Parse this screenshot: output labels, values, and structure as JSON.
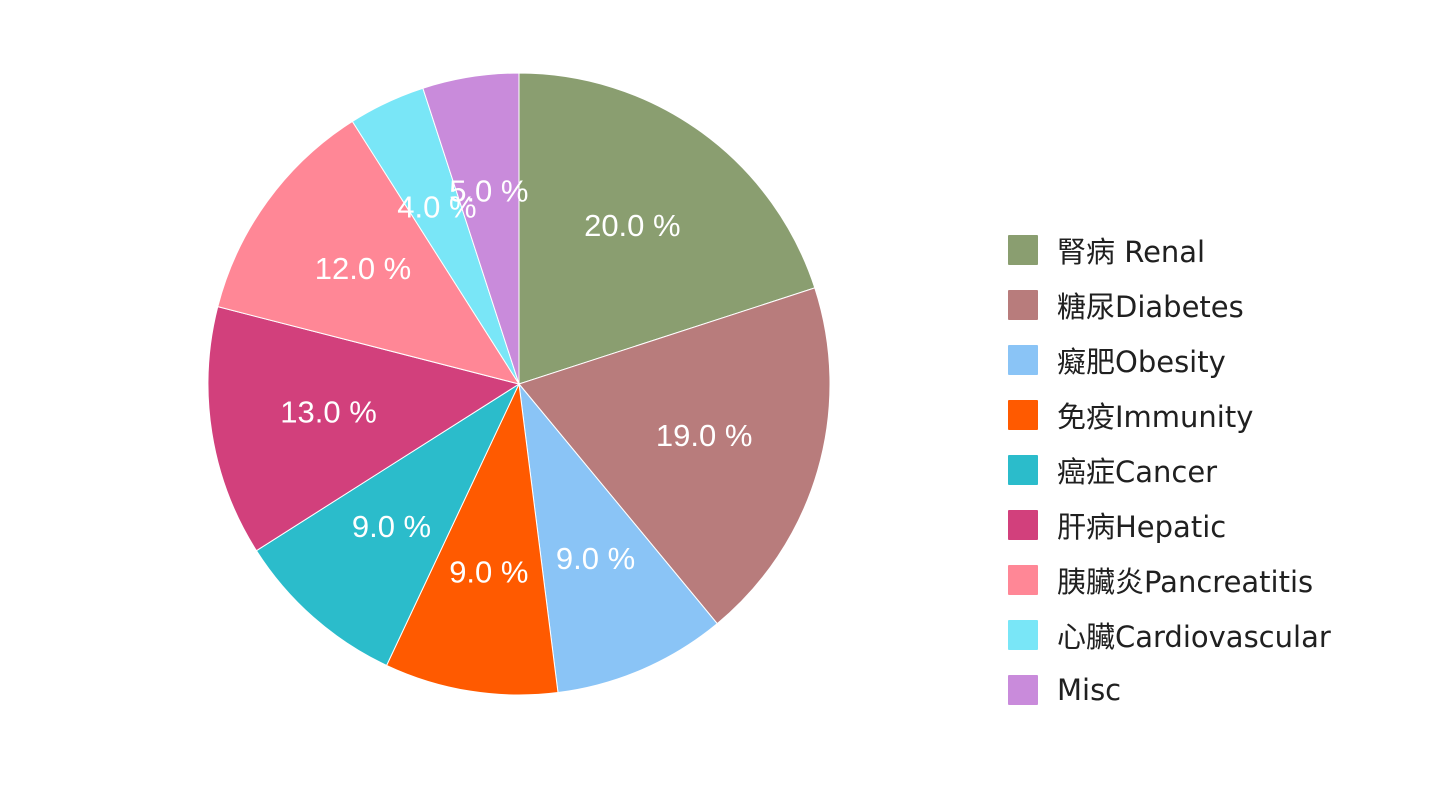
{
  "chart_data": {
    "type": "pie",
    "title": "",
    "slices": [
      {
        "label": "腎病 Renal",
        "value": 20.0,
        "display": "20.0 %",
        "color": "#8A9E70"
      },
      {
        "label": "糖尿Diabetes",
        "value": 19.0,
        "display": "19.0 %",
        "color": "#B87C7C"
      },
      {
        "label": "癡肥Obesity",
        "value": 9.0,
        "display": "9.0 %",
        "color": "#8AC4F6"
      },
      {
        "label": "免疫Immunity",
        "value": 9.0,
        "display": "9.0 %",
        "color": "#FF5A00"
      },
      {
        "label": "癌症Cancer",
        "value": 9.0,
        "display": "9.0 %",
        "color": "#2BBCCB"
      },
      {
        "label": "肝病Hepatic",
        "value": 13.0,
        "display": "13.0 %",
        "color": "#D2407C"
      },
      {
        "label": "胰臟炎Pancreatitis",
        "value": 12.0,
        "display": "12.0 %",
        "color": "#FF8796"
      },
      {
        "label": "心臟Cardiovascular",
        "value": 4.0,
        "display": "4.0 %",
        "color": "#79E6F7"
      },
      {
        "label": "Misc",
        "value": 5.0,
        "display": "5.0 %",
        "color": "#C98BDB"
      }
    ],
    "legend_position": "right",
    "start_angle": "top",
    "direction": "clockwise"
  }
}
